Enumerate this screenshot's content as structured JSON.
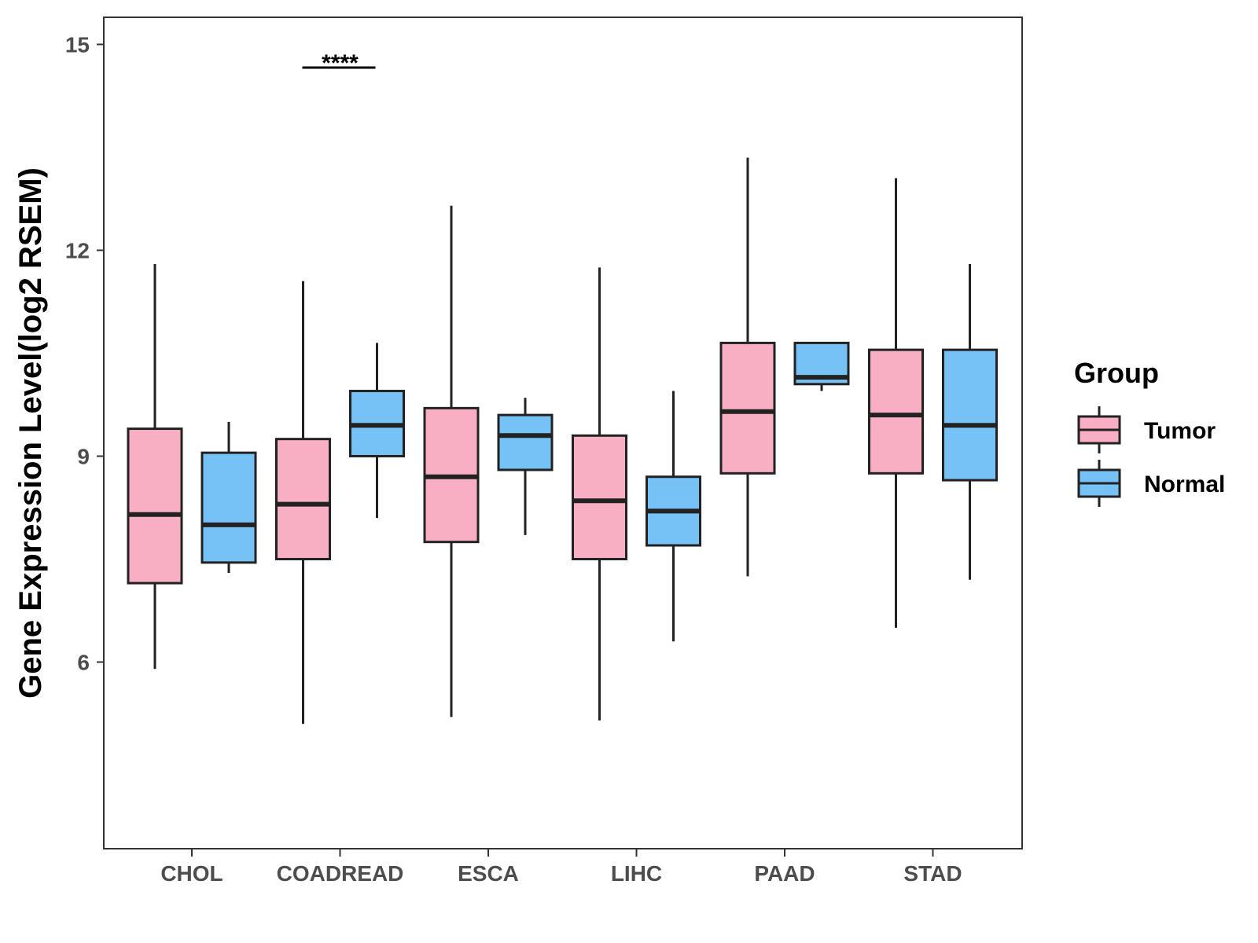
{
  "chart_data": {
    "type": "boxplot",
    "title": "",
    "xlabel": "",
    "ylabel": "Gene Expression Level(log2 RSEM)",
    "ylim": [
      3.3,
      15.4
    ],
    "yticks": [
      6,
      9,
      12,
      15
    ],
    "categories": [
      "CHOL",
      "COADREAD",
      "ESCA",
      "LIHC",
      "PAAD",
      "STAD"
    ],
    "legend": {
      "title": "Group",
      "position": "right"
    },
    "series": [
      {
        "name": "Tumor",
        "color": "#F8AFC3",
        "boxes": [
          {
            "category": "CHOL",
            "min": 5.9,
            "q1": 7.15,
            "median": 8.15,
            "q3": 9.4,
            "max": 11.8
          },
          {
            "category": "COADREAD",
            "min": 5.1,
            "q1": 7.5,
            "median": 8.3,
            "q3": 9.25,
            "max": 11.55
          },
          {
            "category": "ESCA",
            "min": 5.2,
            "q1": 7.75,
            "median": 8.7,
            "q3": 9.7,
            "max": 12.65
          },
          {
            "category": "LIHC",
            "min": 5.15,
            "q1": 7.5,
            "median": 8.35,
            "q3": 9.3,
            "max": 11.75
          },
          {
            "category": "PAAD",
            "min": 7.25,
            "q1": 8.75,
            "median": 9.65,
            "q3": 10.65,
            "max": 13.35
          },
          {
            "category": "STAD",
            "min": 6.5,
            "q1": 8.75,
            "median": 9.6,
            "q3": 10.55,
            "max": 13.05
          }
        ]
      },
      {
        "name": "Normal",
        "color": "#76C1F5",
        "boxes": [
          {
            "category": "CHOL",
            "min": 7.3,
            "q1": 7.45,
            "median": 8.0,
            "q3": 9.05,
            "max": 9.5
          },
          {
            "category": "COADREAD",
            "min": 8.1,
            "q1": 9.0,
            "median": 9.45,
            "q3": 9.95,
            "max": 10.65
          },
          {
            "category": "ESCA",
            "min": 7.85,
            "q1": 8.8,
            "median": 9.3,
            "q3": 9.6,
            "max": 9.85
          },
          {
            "category": "LIHC",
            "min": 6.3,
            "q1": 7.7,
            "median": 8.2,
            "q3": 8.7,
            "max": 9.95
          },
          {
            "category": "PAAD",
            "min": 9.95,
            "q1": 10.05,
            "median": 10.15,
            "q3": 10.65,
            "max": 10.65
          },
          {
            "category": "STAD",
            "min": 7.2,
            "q1": 8.65,
            "median": 9.45,
            "q3": 10.55,
            "max": 11.8
          }
        ]
      }
    ],
    "annotations": [
      {
        "category": "COADREAD",
        "text": "****",
        "y": 14.8
      }
    ]
  }
}
